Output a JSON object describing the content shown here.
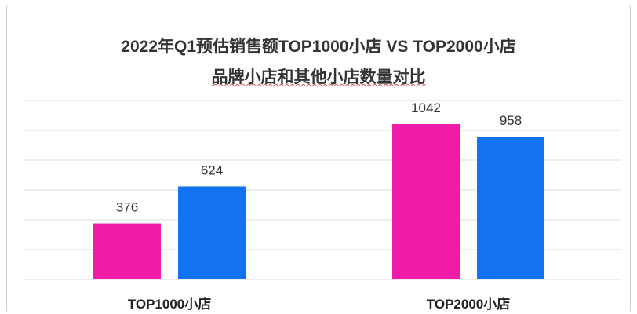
{
  "chart_data": {
    "type": "bar",
    "title": "2022年Q1预估销售额TOP1000小店 VS TOP2000小店",
    "subtitle": "品牌小店和其他小店数量对比",
    "categories": [
      "TOP1000小店",
      "TOP2000小店"
    ],
    "series": [
      {
        "values": [
          376,
          1042
        ],
        "color": "#f01ca8"
      },
      {
        "values": [
          624,
          958
        ],
        "color": "#1273f0"
      }
    ],
    "ylim": [
      0,
      1200
    ],
    "grid": true,
    "xlabel": "",
    "ylabel": ""
  }
}
